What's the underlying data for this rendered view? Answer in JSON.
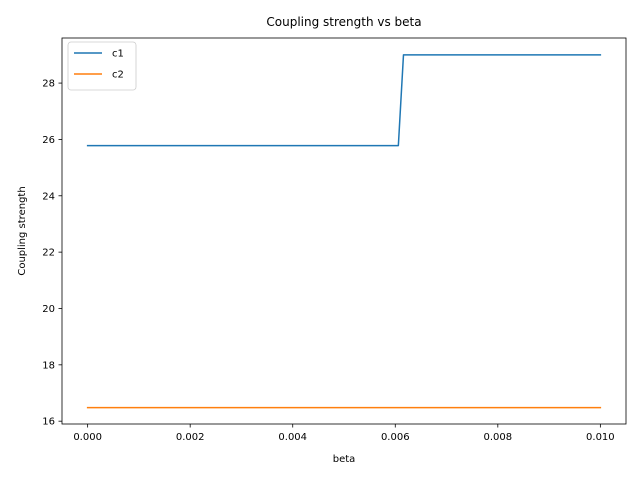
{
  "chart_data": {
    "type": "line",
    "title": "Coupling strength vs beta",
    "xlabel": "beta",
    "ylabel": "Coupling strength",
    "xlim": [
      -0.0005,
      0.0105
    ],
    "ylim": [
      15.9,
      29.6
    ],
    "xticks": [
      0.0,
      0.002,
      0.004,
      0.006,
      0.008,
      0.01
    ],
    "xtick_labels": [
      "0.000",
      "0.002",
      "0.004",
      "0.006",
      "0.008",
      "0.010"
    ],
    "yticks": [
      16,
      18,
      20,
      22,
      24,
      26,
      28
    ],
    "ytick_labels": [
      "16",
      "18",
      "20",
      "22",
      "24",
      "26",
      "28"
    ],
    "grid": false,
    "legend_position": "upper-left",
    "series": [
      {
        "name": "c1",
        "color": "#1f77b4",
        "x": [
          0.0,
          0.00606,
          0.00616,
          0.01
        ],
        "y": [
          25.78,
          25.78,
          29.0,
          29.0
        ]
      },
      {
        "name": "c2",
        "color": "#ff7f0e",
        "x": [
          0.0,
          0.01
        ],
        "y": [
          16.48,
          16.48
        ]
      }
    ]
  }
}
